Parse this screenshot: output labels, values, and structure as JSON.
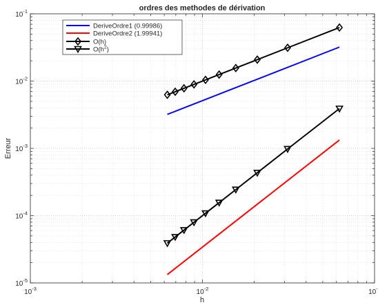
{
  "chart_data": {
    "type": "line",
    "title": "ordres des methodes de dérivation",
    "xlabel": "h",
    "ylabel": "Erreur",
    "xscale": "log",
    "yscale": "log",
    "xlim": [
      0.001,
      0.1
    ],
    "ylim": [
      1e-05,
      0.1
    ],
    "grid": true,
    "legend_position": "top-left",
    "x_ticks": [
      {
        "value": 0.001,
        "base": "10",
        "exp": "-3"
      },
      {
        "value": 0.01,
        "base": "10",
        "exp": "-2"
      },
      {
        "value": 0.1,
        "base": "10",
        "exp": "-1"
      }
    ],
    "y_ticks": [
      {
        "value": 1e-05,
        "base": "10",
        "exp": "-5"
      },
      {
        "value": 0.0001,
        "base": "10",
        "exp": "-4"
      },
      {
        "value": 0.001,
        "base": "10",
        "exp": "-3"
      },
      {
        "value": 0.01,
        "base": "10",
        "exp": "-2"
      },
      {
        "value": 0.1,
        "base": "10",
        "exp": "-1"
      }
    ],
    "series": [
      {
        "name": "DeriveOrdre1 (0.99986)",
        "color": "#0000ff",
        "marker": "none",
        "x": [
          0.00625,
          0.0625
        ],
        "y": [
          0.0032,
          0.032
        ]
      },
      {
        "name": "DeriveOrdre2 (1.99941)",
        "color": "#ff0000",
        "marker": "none",
        "x": [
          0.00625,
          0.0625
        ],
        "y": [
          1.33e-05,
          0.00133
        ]
      },
      {
        "name": "O(h)",
        "color": "#000000",
        "marker": "diamond",
        "x": [
          0.0625,
          0.03125,
          0.02083,
          0.015625,
          0.0125,
          0.010417,
          0.008929,
          0.0078125,
          0.006944,
          0.00625
        ],
        "y": [
          0.0625,
          0.03125,
          0.02083,
          0.015625,
          0.0125,
          0.010417,
          0.008929,
          0.0078125,
          0.006944,
          0.00625
        ]
      },
      {
        "name": "O(h²)",
        "color": "#000000",
        "marker": "triangle-down",
        "x": [
          0.0625,
          0.03125,
          0.02083,
          0.015625,
          0.0125,
          0.010417,
          0.008929,
          0.0078125,
          0.006944,
          0.00625
        ],
        "y": [
          0.0039,
          0.00098,
          0.000434,
          0.000244,
          0.000156,
          0.0001085,
          7.97e-05,
          6.1e-05,
          4.82e-05,
          3.9e-05
        ]
      }
    ],
    "legend": [
      {
        "label": "DeriveOrdre1 (0.99986)"
      },
      {
        "label": "DeriveOrdre2 (1.99941)"
      },
      {
        "label": "O(h)"
      },
      {
        "label": "O(h",
        "sup": "2",
        "tail": ")"
      }
    ]
  }
}
